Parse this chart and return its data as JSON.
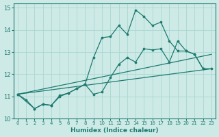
{
  "xlabel": "Humidex (Indice chaleur)",
  "xlim": [
    -0.5,
    23.5
  ],
  "ylim": [
    10,
    15.2
  ],
  "yticks": [
    10,
    11,
    12,
    13,
    14,
    15
  ],
  "xticks": [
    0,
    1,
    2,
    3,
    4,
    5,
    6,
    7,
    8,
    9,
    10,
    11,
    12,
    13,
    14,
    15,
    16,
    17,
    18,
    19,
    20,
    21,
    22,
    23
  ],
  "bg_color": "#cdeae6",
  "grid_color": "#a8d8d3",
  "line_color": "#1e7a70",
  "line1": {
    "x": [
      0,
      1,
      2,
      3,
      4,
      5,
      6,
      7,
      8,
      9,
      10,
      11,
      12,
      13,
      14,
      15,
      16,
      17,
      18,
      19,
      20,
      21,
      22
    ],
    "y": [
      11.1,
      10.85,
      10.45,
      10.65,
      10.6,
      11.05,
      11.15,
      11.35,
      11.55,
      12.75,
      13.65,
      13.7,
      14.2,
      13.8,
      14.9,
      14.6,
      14.2,
      14.35,
      13.5,
      13.05,
      13.05,
      12.9,
      12.25
    ]
  },
  "line2": {
    "x": [
      0,
      2,
      3,
      4,
      5,
      6,
      7,
      8,
      9,
      10,
      11,
      12,
      13,
      14,
      15,
      16,
      17,
      18,
      19,
      20,
      21,
      22,
      23
    ],
    "y": [
      11.1,
      10.45,
      10.65,
      10.6,
      11.0,
      11.15,
      11.35,
      11.55,
      11.1,
      11.2,
      11.85,
      12.45,
      12.75,
      12.55,
      13.15,
      13.1,
      13.15,
      12.55,
      13.5,
      13.05,
      12.9,
      12.25,
      12.25
    ]
  },
  "line3_x": [
    0,
    23
  ],
  "line3_y": [
    11.1,
    12.9
  ],
  "line4_x": [
    0,
    23
  ],
  "line4_y": [
    11.1,
    12.25
  ]
}
